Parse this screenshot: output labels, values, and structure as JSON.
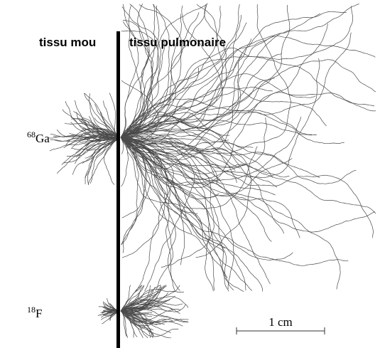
{
  "regions": {
    "left": "tissu mou",
    "right": "tissu pulmonaire"
  },
  "isotopes": [
    {
      "mass": "68",
      "symbol": "Ga"
    },
    {
      "mass": "18",
      "symbol": "F"
    }
  ],
  "scale_bar": {
    "label": "1 cm"
  }
}
